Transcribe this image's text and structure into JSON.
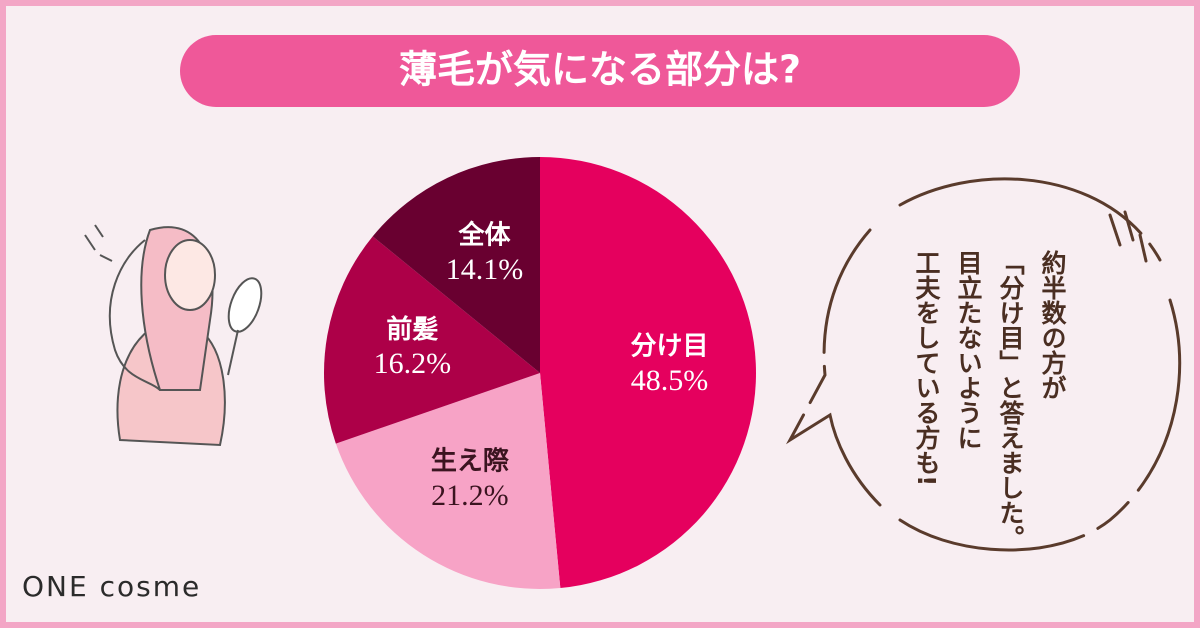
{
  "chart_data": {
    "type": "pie",
    "title": "薄毛が気になる部分は?",
    "categories": [
      "分け目",
      "生え際",
      "前髪",
      "全体"
    ],
    "values": [
      48.5,
      21.2,
      16.2,
      14.1
    ],
    "value_labels": [
      "48.5%",
      "21.2%",
      "16.2%",
      "14.1%"
    ],
    "colors": [
      "#e5005e",
      "#f7a3c6",
      "#ad0048",
      "#690030"
    ],
    "label_colors": [
      "#ffffff",
      "#3b1420",
      "#ffffff",
      "#ffffff"
    ]
  },
  "callout": {
    "lines": [
      "約半数の方が",
      "「分け目」と答えました。",
      "目立たないように",
      "工夫をしている方も!"
    ]
  },
  "logo": "ONE cosme"
}
